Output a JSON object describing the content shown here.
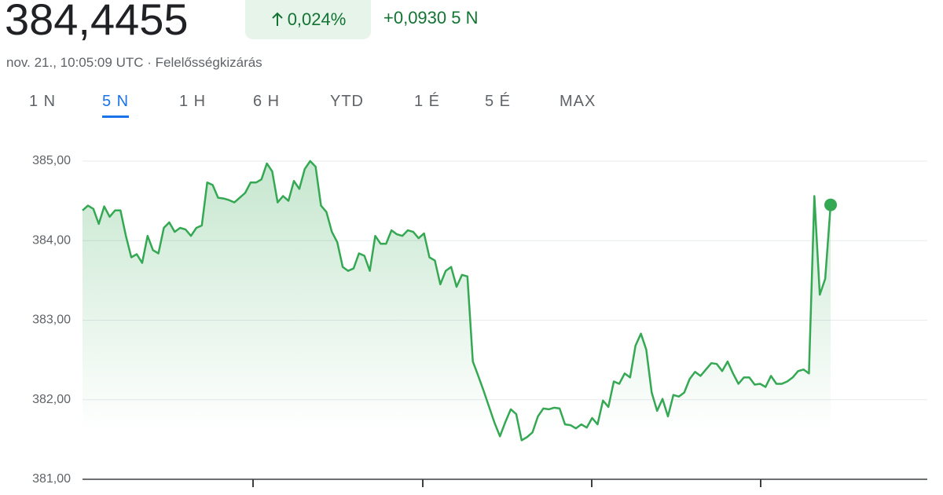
{
  "header": {
    "price": "384,4455",
    "change_percent": "0,024%",
    "change": "+0,0930",
    "change_period": "5 N",
    "timestamp": "nov. 21., 10:05:09 UTC",
    "disclaimer": "Felelősségkizárás"
  },
  "tabs": {
    "items": [
      "1 N",
      "5 N",
      "1 H",
      "6 H",
      "YTD",
      "1 É",
      "5 É",
      "MAX"
    ],
    "selected": 1
  },
  "chart_data": {
    "type": "line",
    "color": "#34a853",
    "grid": true,
    "ylim": [
      381,
      385
    ],
    "yticks": [
      {
        "value": 381,
        "label": "381,00"
      },
      {
        "value": 382,
        "label": "382,00"
      },
      {
        "value": 383,
        "label": "383,00"
      },
      {
        "value": 384,
        "label": "384,00"
      },
      {
        "value": 385,
        "label": "385,00"
      }
    ],
    "values": [
      384.38,
      384.44,
      384.4,
      384.21,
      384.43,
      384.3,
      384.38,
      384.38,
      384.06,
      383.79,
      383.83,
      383.72,
      384.06,
      383.88,
      383.84,
      384.16,
      384.23,
      384.11,
      384.16,
      384.14,
      384.06,
      384.16,
      384.19,
      384.73,
      384.7,
      384.54,
      384.53,
      384.51,
      384.48,
      384.54,
      384.6,
      384.73,
      384.73,
      384.77,
      384.97,
      384.87,
      384.48,
      384.56,
      384.5,
      384.75,
      384.65,
      384.9,
      385.0,
      384.93,
      384.44,
      384.36,
      384.11,
      383.98,
      383.67,
      383.62,
      383.65,
      383.84,
      383.81,
      383.62,
      384.06,
      383.96,
      383.96,
      384.13,
      384.08,
      384.06,
      384.13,
      384.11,
      384.03,
      384.09,
      383.79,
      383.75,
      383.45,
      383.62,
      383.67,
      383.42,
      383.57,
      383.55,
      382.48,
      382.3,
      382.11,
      381.91,
      381.71,
      381.54,
      381.72,
      381.88,
      381.82,
      381.49,
      381.53,
      381.59,
      381.79,
      381.89,
      381.88,
      381.9,
      381.89,
      381.69,
      381.68,
      381.64,
      381.69,
      381.65,
      381.77,
      381.69,
      381.99,
      381.91,
      382.23,
      382.2,
      382.33,
      382.28,
      382.68,
      382.83,
      382.63,
      382.09,
      381.86,
      382.01,
      381.79,
      382.06,
      382.04,
      382.09,
      382.26,
      382.35,
      382.3,
      382.38,
      382.46,
      382.45,
      382.36,
      382.48,
      382.33,
      382.2,
      382.28,
      382.28,
      382.19,
      382.2,
      382.16,
      382.3,
      382.2,
      382.2,
      382.23,
      382.28,
      382.36,
      382.38,
      382.33,
      384.56,
      383.32,
      383.52,
      384.45
    ]
  }
}
